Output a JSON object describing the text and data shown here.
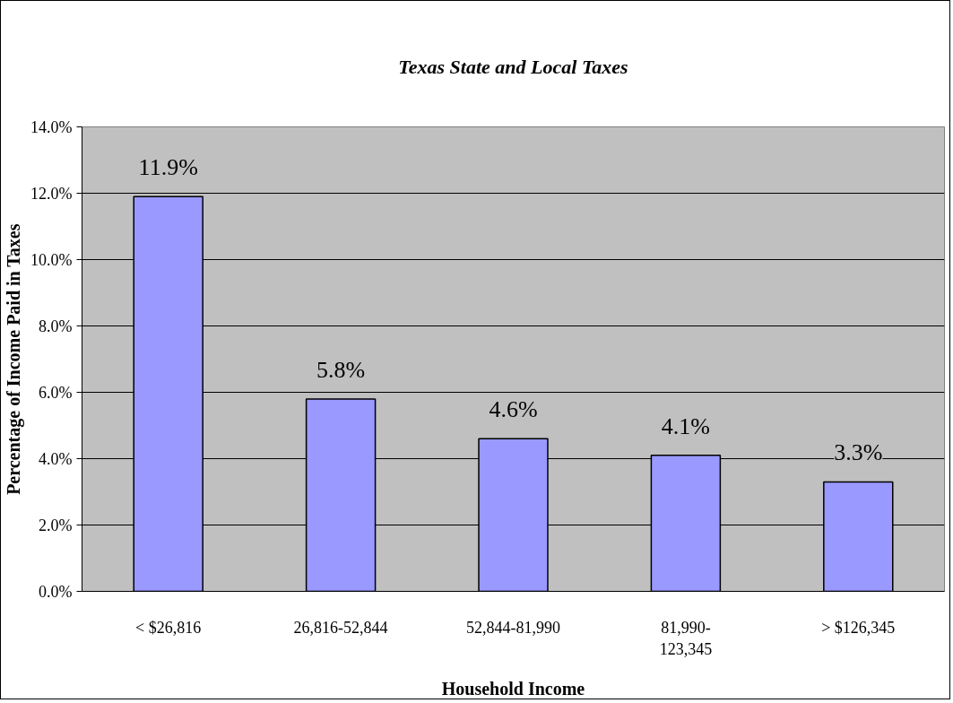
{
  "chart_data": {
    "type": "bar",
    "title": "Texas State and Local Taxes",
    "xlabel": "Household Income",
    "ylabel": "Percentage of Income Paid in Taxes",
    "categories": [
      "< $26,816",
      "26,816-52,844",
      "52,844-81,990",
      "81,990-123,345",
      "> $126,345"
    ],
    "values": [
      11.9,
      5.8,
      4.6,
      4.1,
      3.3
    ],
    "value_labels": [
      "11.9%",
      "5.8%",
      "4.6%",
      "4.1%",
      "3.3%"
    ],
    "color": "#9999ff",
    "ylim": [
      0,
      14
    ],
    "yticks": [
      {
        "value": 0,
        "label": "0.0%"
      },
      {
        "value": 2,
        "label": "2.0%"
      },
      {
        "value": 4,
        "label": "4.0%"
      },
      {
        "value": 6,
        "label": "6.0%"
      },
      {
        "value": 8,
        "label": "8.0%"
      },
      {
        "value": 10,
        "label": "10.0%"
      },
      {
        "value": 12,
        "label": "12.0%"
      },
      {
        "value": 14,
        "label": "14.0%"
      }
    ],
    "grid": "y"
  }
}
